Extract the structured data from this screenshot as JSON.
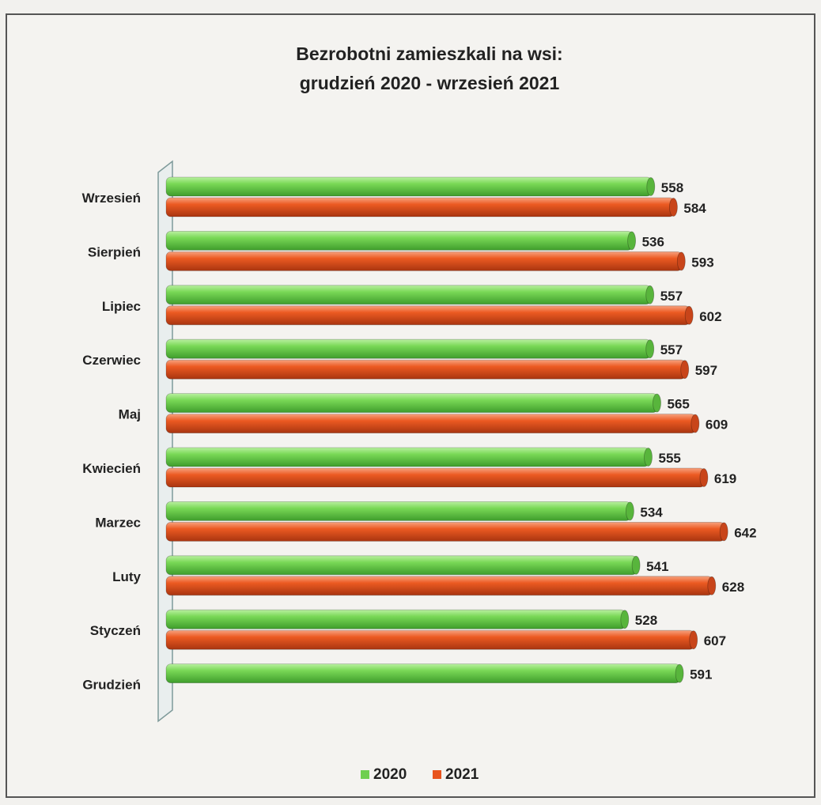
{
  "chart_data": {
    "type": "bar",
    "orientation": "horizontal",
    "style": "3d-cylinder",
    "title": "Bezrobotni zamieszkali na wsi:",
    "subtitle": "grudzień 2020 - wrzesień 2021",
    "categories": [
      "Wrzesień",
      "Sierpień",
      "Lipiec",
      "Czerwiec",
      "Maj",
      "Kwiecień",
      "Marzec",
      "Luty",
      "Styczeń",
      "Grudzień"
    ],
    "series": [
      {
        "name": "2020",
        "color": "#6fcf4f",
        "values": [
          558,
          536,
          557,
          557,
          565,
          555,
          534,
          541,
          528,
          591
        ]
      },
      {
        "name": "2021",
        "color": "#e8541e",
        "values": [
          584,
          593,
          602,
          597,
          609,
          619,
          642,
          628,
          607,
          null
        ]
      }
    ],
    "grid": false,
    "legend_position": "bottom"
  }
}
